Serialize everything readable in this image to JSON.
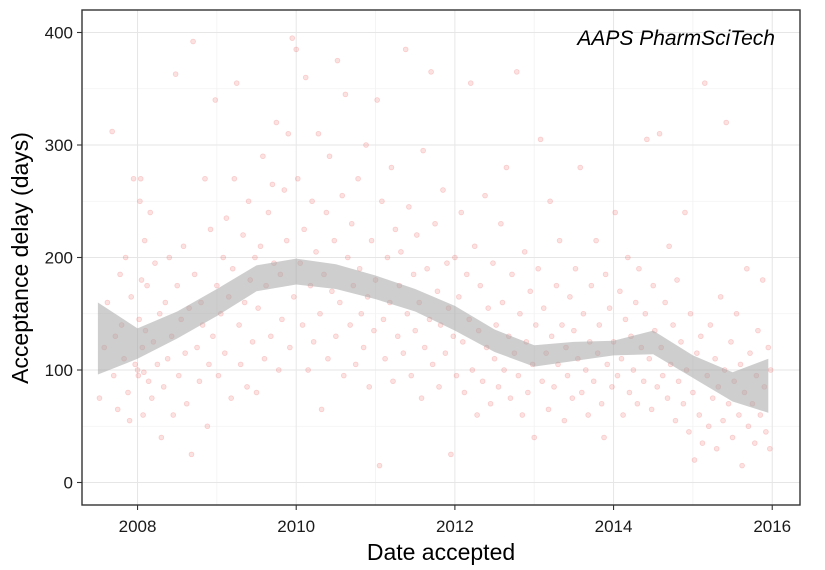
{
  "chart_data": {
    "type": "scatter",
    "title": "",
    "annotation": "AAPS PharmSciTech",
    "xlabel": "Date accepted",
    "ylabel": "Acceptance delay (days)",
    "xlim": [
      2007.3,
      2016.35
    ],
    "ylim": [
      -20,
      420
    ],
    "x_ticks": [
      "2008",
      "2010",
      "2012",
      "2014",
      "2016"
    ],
    "y_ticks": [
      "0",
      "100",
      "200",
      "300",
      "400"
    ],
    "grid": true,
    "point_color": "#f05a5a",
    "point_alpha": 0.18,
    "band_color": "#a6a6a6",
    "smooth": {
      "x": [
        2007.5,
        2008.0,
        2008.5,
        2009.0,
        2009.5,
        2010.0,
        2010.5,
        2011.0,
        2011.5,
        2012.0,
        2012.5,
        2013.0,
        2013.5,
        2014.0,
        2014.5,
        2015.0,
        2015.5,
        2015.95
      ],
      "lower": [
        96,
        110,
        128,
        148,
        170,
        176,
        172,
        163,
        152,
        135,
        116,
        103,
        108,
        113,
        114,
        93,
        72,
        62
      ],
      "upper": [
        160,
        137,
        152,
        172,
        193,
        199,
        194,
        184,
        172,
        157,
        136,
        122,
        125,
        126,
        135,
        113,
        98,
        110
      ]
    },
    "points": [
      [
        2007.52,
        75
      ],
      [
        2007.58,
        120
      ],
      [
        2007.62,
        160
      ],
      [
        2007.68,
        312
      ],
      [
        2007.7,
        95
      ],
      [
        2007.72,
        130
      ],
      [
        2007.75,
        65
      ],
      [
        2007.78,
        185
      ],
      [
        2007.8,
        140
      ],
      [
        2007.83,
        110
      ],
      [
        2007.85,
        200
      ],
      [
        2007.88,
        80
      ],
      [
        2007.9,
        55
      ],
      [
        2007.92,
        165
      ],
      [
        2007.95,
        270
      ],
      [
        2007.97,
        105
      ],
      [
        2008.0,
        100
      ],
      [
        2008.01,
        95
      ],
      [
        2008.02,
        145
      ],
      [
        2008.03,
        250
      ],
      [
        2008.04,
        270
      ],
      [
        2008.05,
        180
      ],
      [
        2008.06,
        120
      ],
      [
        2008.07,
        60
      ],
      [
        2008.08,
        98
      ],
      [
        2008.09,
        215
      ],
      [
        2008.1,
        135
      ],
      [
        2008.12,
        175
      ],
      [
        2008.14,
        90
      ],
      [
        2008.16,
        240
      ],
      [
        2008.18,
        75
      ],
      [
        2008.2,
        125
      ],
      [
        2008.22,
        195
      ],
      [
        2008.25,
        105
      ],
      [
        2008.28,
        150
      ],
      [
        2008.3,
        40
      ],
      [
        2008.33,
        85
      ],
      [
        2008.35,
        160
      ],
      [
        2008.38,
        110
      ],
      [
        2008.4,
        200
      ],
      [
        2008.43,
        130
      ],
      [
        2008.45,
        60
      ],
      [
        2008.48,
        363
      ],
      [
        2008.5,
        175
      ],
      [
        2008.52,
        95
      ],
      [
        2008.55,
        145
      ],
      [
        2008.58,
        210
      ],
      [
        2008.6,
        115
      ],
      [
        2008.62,
        70
      ],
      [
        2008.65,
        155
      ],
      [
        2008.68,
        25
      ],
      [
        2008.7,
        392
      ],
      [
        2008.72,
        185
      ],
      [
        2008.75,
        120
      ],
      [
        2008.78,
        90
      ],
      [
        2008.8,
        160
      ],
      [
        2008.82,
        140
      ],
      [
        2008.85,
        270
      ],
      [
        2008.88,
        50
      ],
      [
        2008.9,
        105
      ],
      [
        2008.92,
        225
      ],
      [
        2008.95,
        130
      ],
      [
        2008.98,
        340
      ],
      [
        2009.0,
        175
      ],
      [
        2009.02,
        95
      ],
      [
        2009.05,
        150
      ],
      [
        2009.08,
        200
      ],
      [
        2009.1,
        115
      ],
      [
        2009.12,
        235
      ],
      [
        2009.15,
        165
      ],
      [
        2009.18,
        75
      ],
      [
        2009.2,
        190
      ],
      [
        2009.22,
        270
      ],
      [
        2009.25,
        355
      ],
      [
        2009.28,
        140
      ],
      [
        2009.3,
        105
      ],
      [
        2009.33,
        220
      ],
      [
        2009.35,
        160
      ],
      [
        2009.38,
        85
      ],
      [
        2009.4,
        250
      ],
      [
        2009.42,
        180
      ],
      [
        2009.45,
        125
      ],
      [
        2009.48,
        200
      ],
      [
        2009.5,
        80
      ],
      [
        2009.52,
        155
      ],
      [
        2009.55,
        210
      ],
      [
        2009.58,
        290
      ],
      [
        2009.6,
        110
      ],
      [
        2009.62,
        175
      ],
      [
        2009.65,
        240
      ],
      [
        2009.68,
        130
      ],
      [
        2009.7,
        265
      ],
      [
        2009.72,
        195
      ],
      [
        2009.75,
        320
      ],
      [
        2009.78,
        100
      ],
      [
        2009.8,
        185
      ],
      [
        2009.82,
        145
      ],
      [
        2009.85,
        260
      ],
      [
        2009.88,
        215
      ],
      [
        2009.9,
        310
      ],
      [
        2009.92,
        120
      ],
      [
        2009.95,
        395
      ],
      [
        2009.97,
        165
      ],
      [
        2010.0,
        385
      ],
      [
        2010.02,
        270
      ],
      [
        2010.05,
        195
      ],
      [
        2010.08,
        140
      ],
      [
        2010.1,
        225
      ],
      [
        2010.12,
        360
      ],
      [
        2010.15,
        100
      ],
      [
        2010.18,
        175
      ],
      [
        2010.2,
        250
      ],
      [
        2010.22,
        125
      ],
      [
        2010.25,
        205
      ],
      [
        2010.28,
        310
      ],
      [
        2010.3,
        150
      ],
      [
        2010.32,
        65
      ],
      [
        2010.35,
        185
      ],
      [
        2010.38,
        240
      ],
      [
        2010.4,
        110
      ],
      [
        2010.42,
        290
      ],
      [
        2010.45,
        170
      ],
      [
        2010.48,
        215
      ],
      [
        2010.5,
        130
      ],
      [
        2010.52,
        375
      ],
      [
        2010.55,
        160
      ],
      [
        2010.58,
        255
      ],
      [
        2010.6,
        95
      ],
      [
        2010.62,
        345
      ],
      [
        2010.65,
        200
      ],
      [
        2010.68,
        140
      ],
      [
        2010.7,
        230
      ],
      [
        2010.72,
        175
      ],
      [
        2010.75,
        105
      ],
      [
        2010.78,
        270
      ],
      [
        2010.8,
        190
      ],
      [
        2010.82,
        150
      ],
      [
        2010.85,
        120
      ],
      [
        2010.88,
        300
      ],
      [
        2010.9,
        165
      ],
      [
        2010.92,
        85
      ],
      [
        2010.95,
        215
      ],
      [
        2010.98,
        135
      ],
      [
        2011.0,
        180
      ],
      [
        2011.02,
        340
      ],
      [
        2011.05,
        15
      ],
      [
        2011.08,
        250
      ],
      [
        2011.1,
        145
      ],
      [
        2011.12,
        110
      ],
      [
        2011.15,
        200
      ],
      [
        2011.18,
        160
      ],
      [
        2011.2,
        280
      ],
      [
        2011.22,
        90
      ],
      [
        2011.25,
        225
      ],
      [
        2011.28,
        130
      ],
      [
        2011.3,
        175
      ],
      [
        2011.32,
        205
      ],
      [
        2011.35,
        115
      ],
      [
        2011.38,
        385
      ],
      [
        2011.4,
        150
      ],
      [
        2011.42,
        245
      ],
      [
        2011.45,
        95
      ],
      [
        2011.48,
        185
      ],
      [
        2011.5,
        135
      ],
      [
        2011.52,
        220
      ],
      [
        2011.55,
        160
      ],
      [
        2011.58,
        75
      ],
      [
        2011.6,
        295
      ],
      [
        2011.62,
        120
      ],
      [
        2011.65,
        190
      ],
      [
        2011.68,
        145
      ],
      [
        2011.7,
        365
      ],
      [
        2011.72,
        105
      ],
      [
        2011.75,
        230
      ],
      [
        2011.78,
        170
      ],
      [
        2011.8,
        85
      ],
      [
        2011.82,
        140
      ],
      [
        2011.85,
        260
      ],
      [
        2011.88,
        115
      ],
      [
        2011.9,
        195
      ],
      [
        2011.92,
        155
      ],
      [
        2011.95,
        25
      ],
      [
        2011.98,
        130
      ],
      [
        2012.0,
        200
      ],
      [
        2012.02,
        95
      ],
      [
        2012.05,
        165
      ],
      [
        2012.08,
        240
      ],
      [
        2012.1,
        125
      ],
      [
        2012.12,
        80
      ],
      [
        2012.15,
        185
      ],
      [
        2012.18,
        145
      ],
      [
        2012.2,
        355
      ],
      [
        2012.22,
        100
      ],
      [
        2012.25,
        210
      ],
      [
        2012.28,
        60
      ],
      [
        2012.3,
        135
      ],
      [
        2012.32,
        175
      ],
      [
        2012.35,
        90
      ],
      [
        2012.38,
        255
      ],
      [
        2012.4,
        120
      ],
      [
        2012.42,
        155
      ],
      [
        2012.45,
        70
      ],
      [
        2012.48,
        195
      ],
      [
        2012.5,
        110
      ],
      [
        2012.52,
        140
      ],
      [
        2012.55,
        85
      ],
      [
        2012.58,
        230
      ],
      [
        2012.6,
        160
      ],
      [
        2012.62,
        100
      ],
      [
        2012.65,
        280
      ],
      [
        2012.68,
        130
      ],
      [
        2012.7,
        75
      ],
      [
        2012.72,
        185
      ],
      [
        2012.75,
        115
      ],
      [
        2012.78,
        365
      ],
      [
        2012.8,
        95
      ],
      [
        2012.82,
        150
      ],
      [
        2012.85,
        60
      ],
      [
        2012.88,
        205
      ],
      [
        2012.9,
        125
      ],
      [
        2012.92,
        80
      ],
      [
        2012.95,
        170
      ],
      [
        2012.98,
        105
      ],
      [
        2013.0,
        40
      ],
      [
        2013.02,
        140
      ],
      [
        2013.05,
        190
      ],
      [
        2013.08,
        305
      ],
      [
        2013.1,
        90
      ],
      [
        2013.12,
        155
      ],
      [
        2013.15,
        115
      ],
      [
        2013.18,
        65
      ],
      [
        2013.2,
        250
      ],
      [
        2013.22,
        130
      ],
      [
        2013.25,
        85
      ],
      [
        2013.28,
        175
      ],
      [
        2013.3,
        105
      ],
      [
        2013.32,
        215
      ],
      [
        2013.35,
        140
      ],
      [
        2013.38,
        55
      ],
      [
        2013.4,
        120
      ],
      [
        2013.42,
        95
      ],
      [
        2013.45,
        165
      ],
      [
        2013.48,
        75
      ],
      [
        2013.5,
        135
      ],
      [
        2013.52,
        190
      ],
      [
        2013.55,
        110
      ],
      [
        2013.58,
        280
      ],
      [
        2013.6,
        80
      ],
      [
        2013.62,
        150
      ],
      [
        2013.65,
        100
      ],
      [
        2013.68,
        60
      ],
      [
        2013.7,
        125
      ],
      [
        2013.72,
        175
      ],
      [
        2013.75,
        90
      ],
      [
        2013.78,
        215
      ],
      [
        2013.8,
        115
      ],
      [
        2013.82,
        140
      ],
      [
        2013.85,
        70
      ],
      [
        2013.88,
        40
      ],
      [
        2013.9,
        185
      ],
      [
        2013.92,
        105
      ],
      [
        2013.95,
        155
      ],
      [
        2013.98,
        85
      ],
      [
        2014.0,
        125
      ],
      [
        2014.02,
        240
      ],
      [
        2014.05,
        95
      ],
      [
        2014.08,
        170
      ],
      [
        2014.1,
        110
      ],
      [
        2014.12,
        60
      ],
      [
        2014.15,
        145
      ],
      [
        2014.18,
        200
      ],
      [
        2014.2,
        80
      ],
      [
        2014.22,
        130
      ],
      [
        2014.25,
        100
      ],
      [
        2014.28,
        160
      ],
      [
        2014.3,
        70
      ],
      [
        2014.32,
        190
      ],
      [
        2014.35,
        120
      ],
      [
        2014.38,
        90
      ],
      [
        2014.4,
        150
      ],
      [
        2014.42,
        305
      ],
      [
        2014.45,
        110
      ],
      [
        2014.48,
        65
      ],
      [
        2014.5,
        175
      ],
      [
        2014.52,
        135
      ],
      [
        2014.55,
        85
      ],
      [
        2014.58,
        310
      ],
      [
        2014.6,
        120
      ],
      [
        2014.62,
        95
      ],
      [
        2014.65,
        160
      ],
      [
        2014.68,
        75
      ],
      [
        2014.7,
        210
      ],
      [
        2014.72,
        105
      ],
      [
        2014.75,
        140
      ],
      [
        2014.78,
        55
      ],
      [
        2014.8,
        180
      ],
      [
        2014.82,
        90
      ],
      [
        2014.85,
        125
      ],
      [
        2014.88,
        70
      ],
      [
        2014.9,
        240
      ],
      [
        2014.92,
        100
      ],
      [
        2014.95,
        45
      ],
      [
        2014.97,
        150
      ],
      [
        2015.0,
        80
      ],
      [
        2015.02,
        20
      ],
      [
        2015.05,
        115
      ],
      [
        2015.08,
        60
      ],
      [
        2015.1,
        130
      ],
      [
        2015.12,
        35
      ],
      [
        2015.15,
        355
      ],
      [
        2015.18,
        95
      ],
      [
        2015.2,
        50
      ],
      [
        2015.22,
        140
      ],
      [
        2015.25,
        75
      ],
      [
        2015.28,
        110
      ],
      [
        2015.3,
        30
      ],
      [
        2015.32,
        85
      ],
      [
        2015.35,
        165
      ],
      [
        2015.38,
        55
      ],
      [
        2015.4,
        100
      ],
      [
        2015.42,
        320
      ],
      [
        2015.45,
        70
      ],
      [
        2015.48,
        125
      ],
      [
        2015.5,
        40
      ],
      [
        2015.52,
        90
      ],
      [
        2015.55,
        150
      ],
      [
        2015.58,
        60
      ],
      [
        2015.6,
        105
      ],
      [
        2015.62,
        15
      ],
      [
        2015.65,
        80
      ],
      [
        2015.68,
        190
      ],
      [
        2015.7,
        50
      ],
      [
        2015.72,
        115
      ],
      [
        2015.75,
        70
      ],
      [
        2015.78,
        35
      ],
      [
        2015.8,
        95
      ],
      [
        2015.82,
        135
      ],
      [
        2015.85,
        60
      ],
      [
        2015.88,
        180
      ],
      [
        2015.9,
        85
      ],
      [
        2015.92,
        45
      ],
      [
        2015.95,
        120
      ],
      [
        2015.97,
        30
      ],
      [
        2015.98,
        100
      ]
    ]
  }
}
